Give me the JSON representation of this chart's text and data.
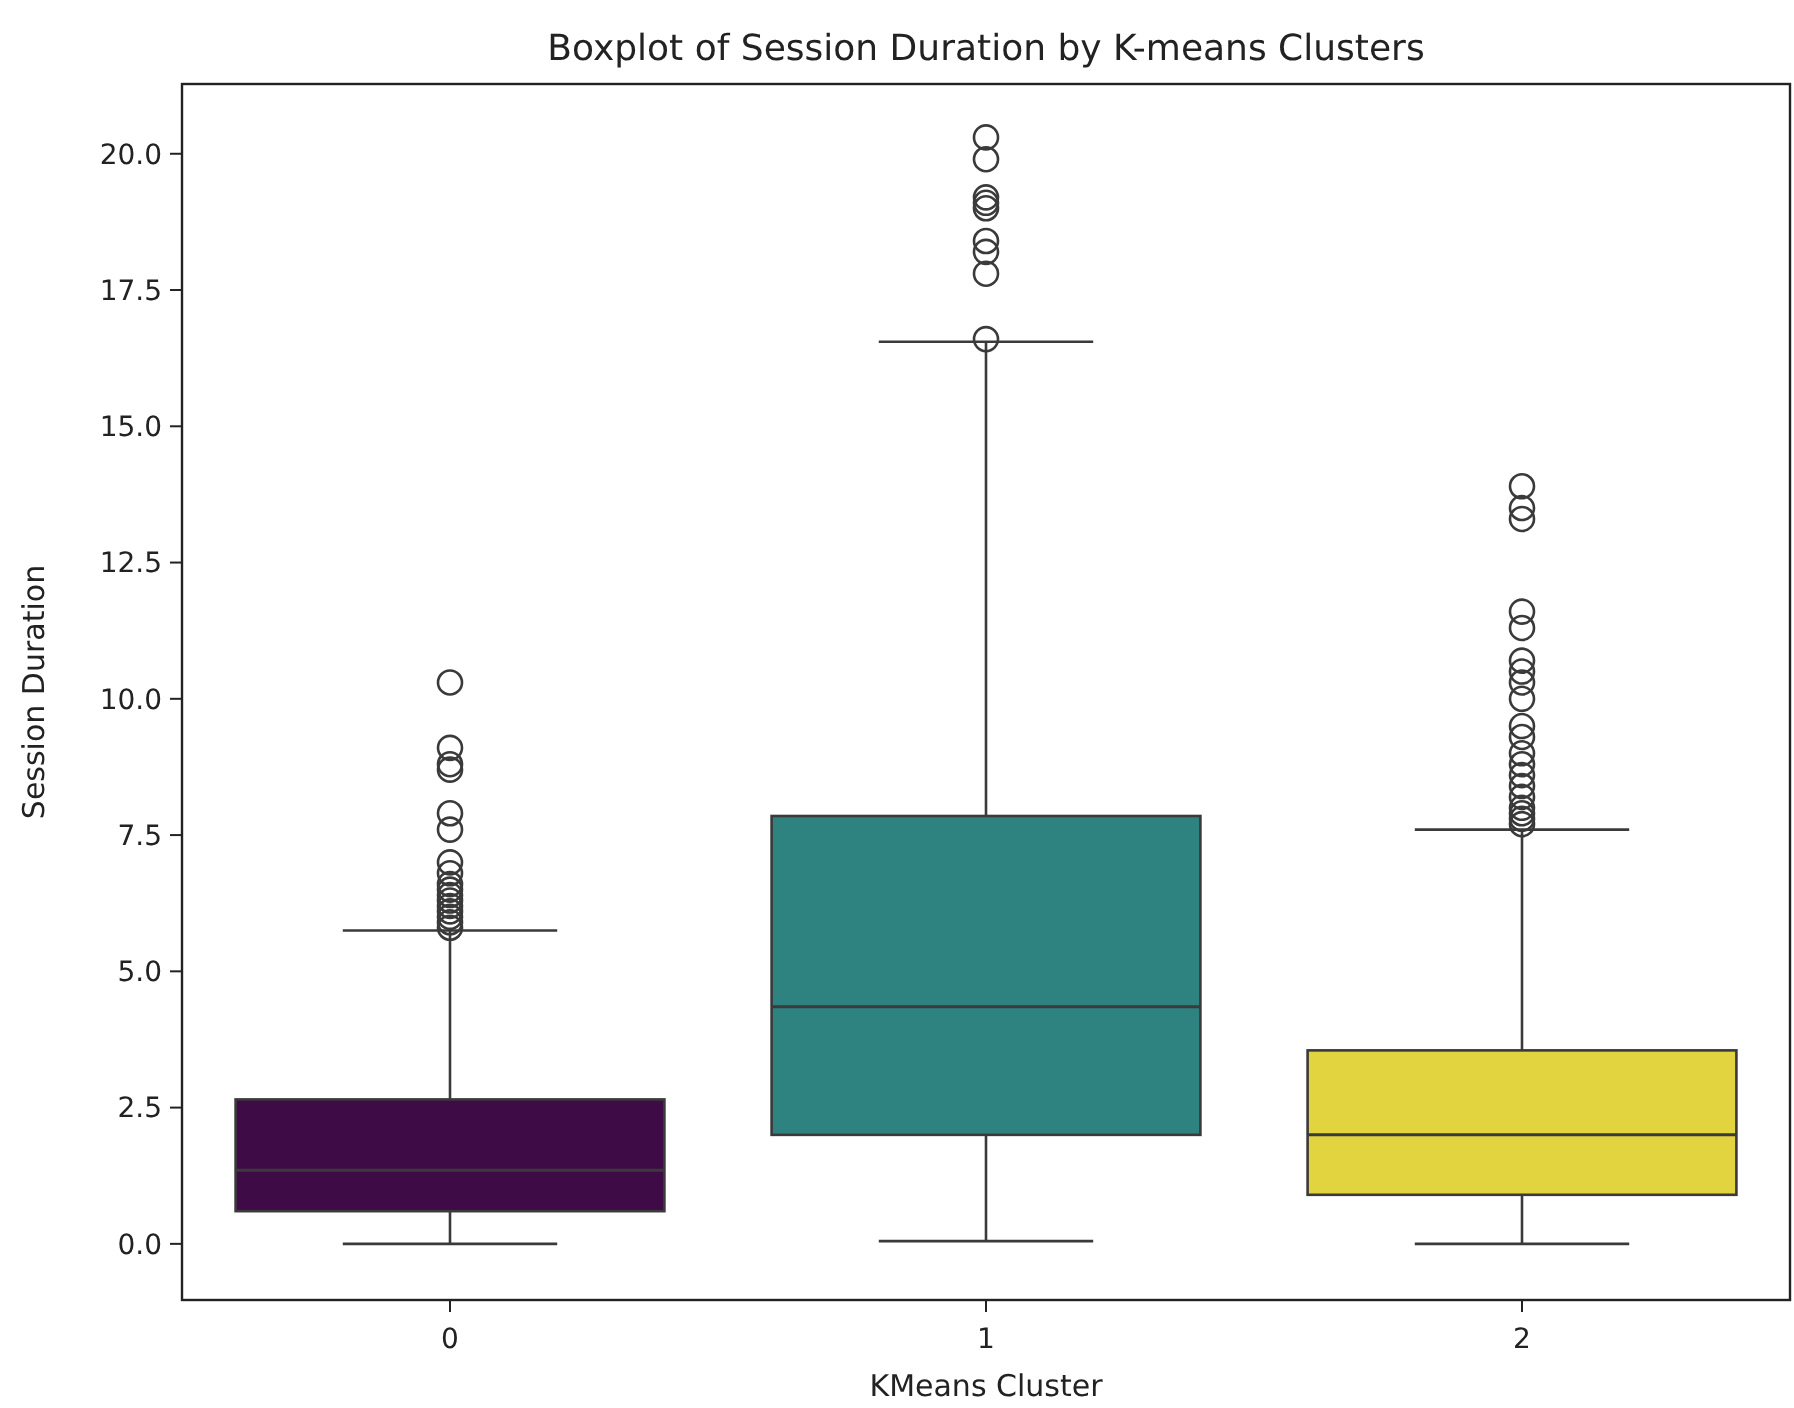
{
  "chart_data": {
    "type": "box",
    "title": "Boxplot of Session Duration by K-means Clusters",
    "xlabel": "KMeans Cluster",
    "ylabel": "Session Duration",
    "categories": [
      "0",
      "1",
      "2"
    ],
    "colors": [
      "#3f0b47",
      "#2e8380",
      "#e2d43e"
    ],
    "boxes": [
      {
        "low": 0,
        "q1": 0.6,
        "median": 1.35,
        "q3": 2.65,
        "high": 5.75,
        "outliers": [
          5.8,
          5.9,
          6.0,
          6.1,
          6.2,
          6.3,
          6.4,
          6.5,
          6.6,
          6.8,
          7.0,
          7.6,
          7.9,
          8.7,
          8.8,
          9.1,
          10.3
        ]
      },
      {
        "low": 0.05,
        "q1": 2.0,
        "median": 4.35,
        "q3": 7.85,
        "high": 16.55,
        "outliers": [
          16.6,
          17.8,
          18.2,
          18.4,
          19.0,
          19.1,
          19.2,
          19.9,
          20.3
        ]
      },
      {
        "low": 0,
        "q1": 0.9,
        "median": 2.0,
        "q3": 3.55,
        "high": 7.6,
        "outliers": [
          7.7,
          7.8,
          7.9,
          8.0,
          8.2,
          8.4,
          8.6,
          8.8,
          9.0,
          9.3,
          9.5,
          10.0,
          10.3,
          10.5,
          10.7,
          11.3,
          11.6,
          13.3,
          13.5,
          13.9
        ]
      }
    ],
    "ylim": [
      -1.03,
      21.28
    ],
    "yticks": [
      {
        "value": 0,
        "label": "0.0"
      },
      {
        "value": 2.5,
        "label": "2.5"
      },
      {
        "value": 5,
        "label": "5.0"
      },
      {
        "value": 7.5,
        "label": "7.5"
      },
      {
        "value": 10,
        "label": "10.0"
      },
      {
        "value": 12.5,
        "label": "12.5"
      },
      {
        "value": 15,
        "label": "15.0"
      },
      {
        "value": 17.5,
        "label": "17.5"
      },
      {
        "value": 20,
        "label": "20.0"
      }
    ]
  }
}
